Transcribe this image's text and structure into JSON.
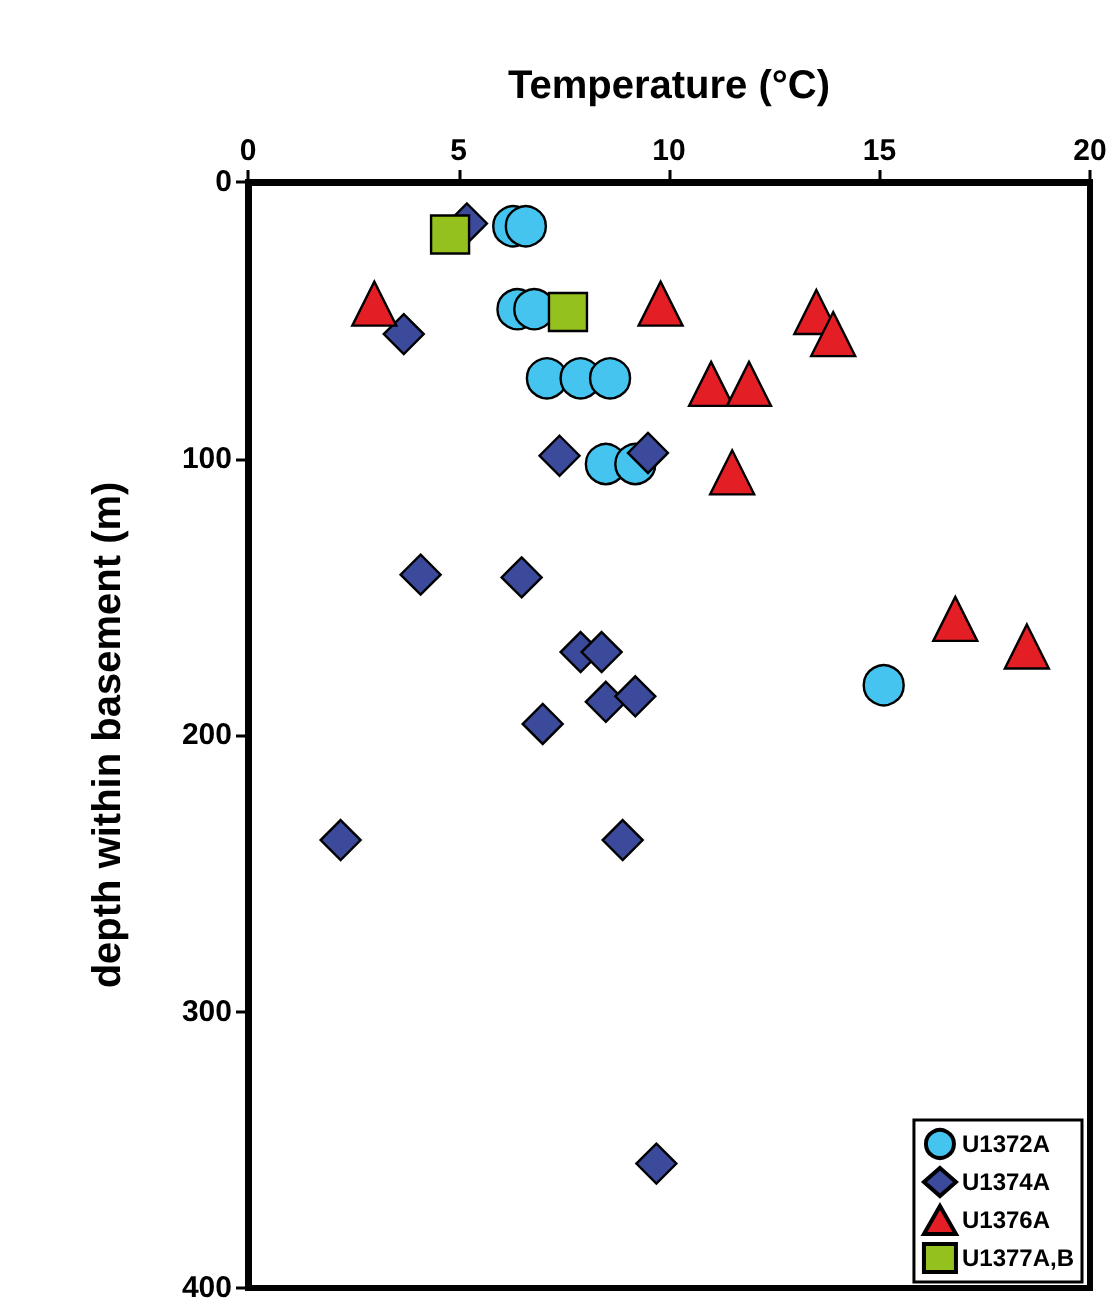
{
  "chart_data": {
    "type": "scatter",
    "xlabel": "Temperature (°C)",
    "ylabel": "depth within basement (m)",
    "xlim": [
      0,
      20
    ],
    "xticks": [
      0,
      5,
      10,
      15,
      20
    ],
    "ylim": [
      400,
      0
    ],
    "yticks": [
      0,
      100,
      200,
      300,
      400
    ],
    "grid": false,
    "legend": "bottom right",
    "series": [
      {
        "name": "U1372A",
        "color": "#45c4ef",
        "marker": "circle",
        "x": [
          6.3,
          6.6,
          6.4,
          6.8,
          7.1,
          7.9,
          8.6,
          8.5,
          9.2,
          15.1
        ],
        "values": [
          16,
          16,
          46,
          46,
          71,
          71,
          71,
          102,
          102,
          182
        ]
      },
      {
        "name": "U1374A",
        "color": "#3b4a9a",
        "marker": "diamond",
        "x": [
          5.2,
          3.7,
          7.4,
          9.5,
          4.1,
          6.5,
          7.9,
          8.4,
          8.5,
          9.2,
          7.0,
          2.2,
          8.9,
          9.7
        ],
        "values": [
          15,
          55,
          99,
          98,
          142,
          143,
          170,
          170,
          188,
          186,
          196,
          238,
          238,
          355
        ]
      },
      {
        "name": "U1376A",
        "color": "#e31e24",
        "marker": "triangle",
        "x": [
          3.0,
          9.8,
          13.5,
          13.9,
          11.0,
          11.9,
          11.5,
          16.8,
          18.5
        ],
        "values": [
          44,
          44,
          47,
          55,
          73,
          73,
          105,
          158,
          168
        ]
      },
      {
        "name": "U1377A,B",
        "color": "#95c11f",
        "marker": "square",
        "x": [
          4.8,
          7.6
        ],
        "values": [
          19,
          47
        ]
      }
    ]
  }
}
